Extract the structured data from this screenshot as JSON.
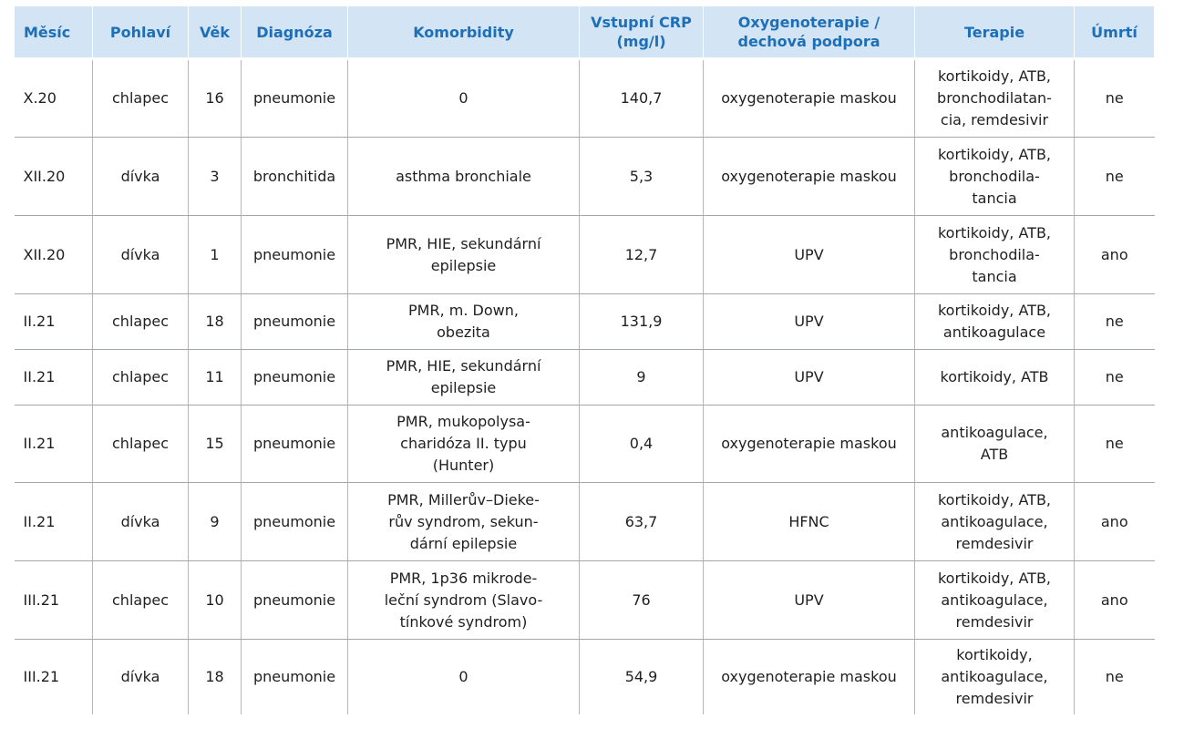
{
  "headers": [
    "Měsíc",
    "Pohlaví",
    "Věk",
    "Diagnóza",
    "Komorbidity",
    "Vstupní CRP\n(mg/l)",
    "Oxygenoterapie /\ndechová podpora",
    "Terapie",
    "Úmrtí"
  ],
  "rows": [
    [
      "X.20",
      "chlapec",
      "16",
      "pneumonie",
      "0",
      "140,7",
      "oxygenoterapie maskou",
      "kortikoidy, ATB,\nbronchodilatan-\ncia, remdesivir",
      "ne"
    ],
    [
      "XII.20",
      "dívka",
      "3",
      "bronchitida",
      "asthma bronchiale",
      "5,3",
      "oxygenoterapie maskou",
      "kortikoidy, ATB,\nbronchodila-\ntancia",
      "ne"
    ],
    [
      "XII.20",
      "dívka",
      "1",
      "pneumonie",
      "PMR, HIE, sekundární\nepilepsie",
      "12,7",
      "UPV",
      "kortikoidy, ATB,\nbronchodila-\ntancia",
      "ano"
    ],
    [
      "II.21",
      "chlapec",
      "18",
      "pneumonie",
      "PMR, m. Down,\nobezita",
      "131,9",
      "UPV",
      "kortikoidy, ATB,\nantikoagulace",
      "ne"
    ],
    [
      "II.21",
      "chlapec",
      "11",
      "pneumonie",
      "PMR, HIE, sekundární\nepilepsie",
      "9",
      "UPV",
      "kortikoidy, ATB",
      "ne"
    ],
    [
      "II.21",
      "chlapec",
      "15",
      "pneumonie",
      "PMR, mukopolysa-\ncharidóza II. typu\n(Hunter)",
      "0,4",
      "oxygenoterapie maskou",
      "antikoagulace,\nATB",
      "ne"
    ],
    [
      "II.21",
      "dívka",
      "9",
      "pneumonie",
      "PMR, Millerův–Dieke-\nrův syndrom, sekun-\ndární epilepsie",
      "63,7",
      "HFNC",
      "kortikoidy, ATB,\nantikoagulace,\nremdesivir",
      "ano"
    ],
    [
      "III.21",
      "chlapec",
      "10",
      "pneumonie",
      "PMR, 1p36 mikrode-\nleční syndrom (Slavo-\ntínkové syndrom)",
      "76",
      "UPV",
      "kortikoidy, ATB,\nantikoagulace,\nremdesivir",
      "ano"
    ],
    [
      "III.21",
      "dívka",
      "18",
      "pneumonie",
      "0",
      "54,9",
      "oxygenoterapie maskou",
      "kortikoidy,\nantikoagulace,\nremdesivir",
      "ne"
    ]
  ]
}
